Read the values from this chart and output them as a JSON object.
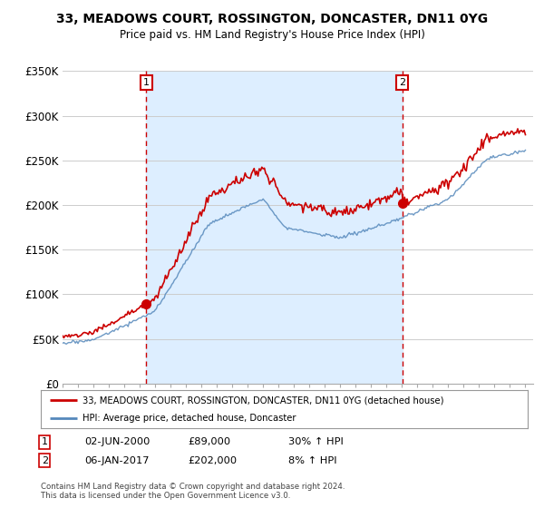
{
  "title": "33, MEADOWS COURT, ROSSINGTON, DONCASTER, DN11 0YG",
  "subtitle": "Price paid vs. HM Land Registry's House Price Index (HPI)",
  "legend_line1": "33, MEADOWS COURT, ROSSINGTON, DONCASTER, DN11 0YG (detached house)",
  "legend_line2": "HPI: Average price, detached house, Doncaster",
  "footnote": "Contains HM Land Registry data © Crown copyright and database right 2024.\nThis data is licensed under the Open Government Licence v3.0.",
  "sale1_label": "1",
  "sale1_date": "02-JUN-2000",
  "sale1_price": "£89,000",
  "sale1_hpi": "30% ↑ HPI",
  "sale1_x": 2000.42,
  "sale1_y": 89000,
  "sale2_label": "2",
  "sale2_date": "06-JAN-2017",
  "sale2_price": "£202,000",
  "sale2_hpi": "8% ↑ HPI",
  "sale2_x": 2017.02,
  "sale2_y": 202000,
  "red_color": "#cc0000",
  "blue_color": "#5588bb",
  "shade_color": "#ddeeff",
  "vline_color": "#cc0000",
  "grid_color": "#cccccc",
  "bg_color": "#ffffff",
  "ylim": [
    0,
    350000
  ],
  "xlim": [
    1995.0,
    2025.5
  ],
  "yticks": [
    0,
    50000,
    100000,
    150000,
    200000,
    250000,
    300000,
    350000
  ],
  "ytick_labels": [
    "£0",
    "£50K",
    "£100K",
    "£150K",
    "£200K",
    "£250K",
    "£300K",
    "£350K"
  ],
  "xticks": [
    1995,
    1996,
    1997,
    1998,
    1999,
    2000,
    2001,
    2002,
    2003,
    2004,
    2005,
    2006,
    2007,
    2008,
    2009,
    2010,
    2011,
    2012,
    2013,
    2014,
    2015,
    2016,
    2017,
    2018,
    2019,
    2020,
    2021,
    2022,
    2023,
    2024,
    2025
  ]
}
